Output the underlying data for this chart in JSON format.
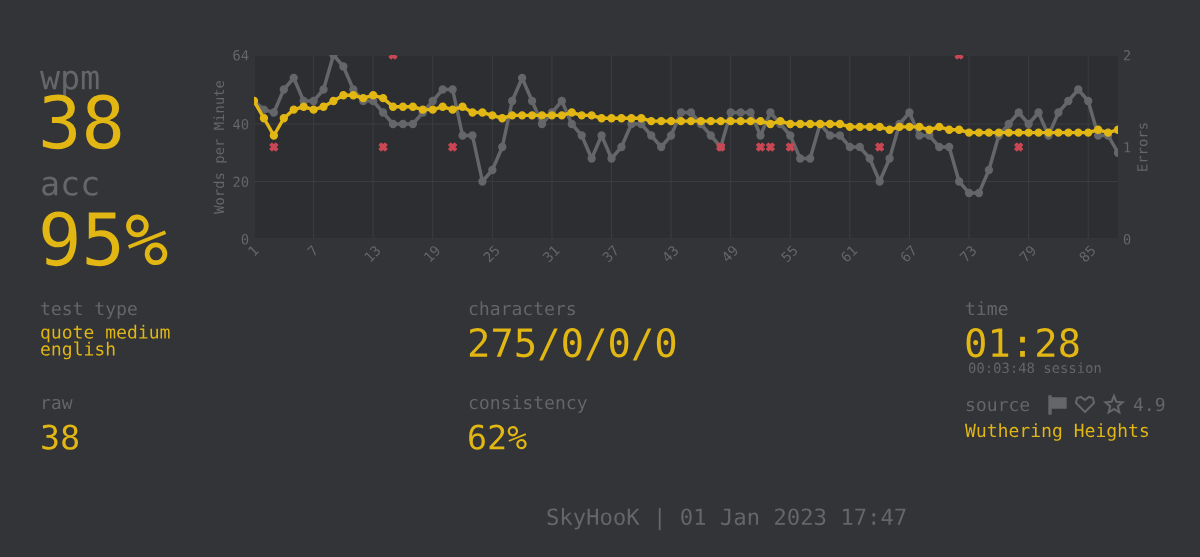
{
  "chart_data": {
    "type": "line",
    "x": [
      1,
      2,
      3,
      4,
      5,
      6,
      7,
      8,
      9,
      10,
      11,
      12,
      13,
      14,
      15,
      16,
      17,
      18,
      19,
      20,
      21,
      22,
      23,
      24,
      25,
      26,
      27,
      28,
      29,
      30,
      31,
      32,
      33,
      34,
      35,
      36,
      37,
      38,
      39,
      40,
      41,
      42,
      43,
      44,
      45,
      46,
      47,
      48,
      49,
      50,
      51,
      52,
      53,
      54,
      55,
      56,
      57,
      58,
      59,
      60,
      61,
      62,
      63,
      64,
      65,
      66,
      67,
      68,
      69,
      70,
      71,
      72,
      73,
      74,
      75,
      76,
      77,
      78,
      79,
      80,
      81,
      82,
      83,
      84,
      85,
      86,
      87,
      88
    ],
    "series": [
      {
        "color": "#646669",
        "marker": "circle",
        "values": [
          48,
          45,
          44,
          52,
          56,
          48,
          48,
          52,
          64,
          60,
          52,
          48,
          48,
          44,
          40,
          40,
          40,
          44,
          48,
          52,
          52,
          36,
          36,
          20,
          24,
          32,
          48,
          56,
          48,
          40,
          44,
          48,
          40,
          36,
          28,
          36,
          28,
          32,
          40,
          40,
          36,
          32,
          36,
          44,
          44,
          40,
          36,
          32,
          44,
          44,
          44,
          36,
          44,
          40,
          36,
          28,
          28,
          40,
          36,
          36,
          32,
          32,
          28,
          20,
          28,
          40,
          44,
          36,
          36,
          32,
          32,
          20,
          16,
          16,
          24,
          36,
          40,
          44,
          40,
          44,
          36,
          44,
          48,
          52,
          48,
          36,
          36,
          30
        ]
      },
      {
        "color": "#e2b714",
        "marker": "circle",
        "values": [
          48,
          42,
          36,
          42,
          45,
          46,
          45,
          46,
          48,
          50,
          50,
          49,
          50,
          49,
          46,
          46,
          46,
          45,
          45,
          46,
          45,
          46,
          44,
          44,
          43,
          42,
          43,
          43,
          43,
          43,
          43,
          43,
          44,
          43,
          43,
          42,
          42,
          42,
          42,
          42,
          41,
          41,
          41,
          41,
          41,
          41,
          41,
          41,
          41,
          41,
          41,
          41,
          40,
          41,
          40,
          40,
          40,
          40,
          40,
          40,
          39,
          39,
          39,
          39,
          38,
          39,
          39,
          39,
          38,
          39,
          38,
          38,
          37,
          37,
          37,
          37,
          37,
          37,
          37,
          37,
          37,
          37,
          37,
          37,
          37,
          38,
          37,
          38
        ]
      },
      {
        "type": "scatter",
        "axis": "y2",
        "color": "#ca4754",
        "marker": "cross",
        "x": [
          3,
          14,
          15,
          21,
          48,
          52,
          53,
          55,
          64,
          72,
          78
        ],
        "values": [
          1,
          1,
          2,
          1,
          1,
          1,
          1,
          1,
          1,
          2,
          1
        ]
      }
    ],
    "xlim": [
      1,
      88
    ],
    "xticks": [
      1,
      7,
      13,
      19,
      25,
      31,
      37,
      43,
      49,
      55,
      61,
      67,
      73,
      79,
      85
    ],
    "ylim": [
      0,
      64
    ],
    "yticks": [
      0,
      20,
      40,
      64
    ],
    "y2lim": [
      0,
      2
    ],
    "y2ticks": [
      0,
      1,
      2
    ],
    "ylabel": "Words per Minute",
    "y2label": "Errors",
    "grid": true,
    "annotations": [
      "wpm",
      "38",
      "acc",
      "95%",
      "test type",
      "quote medium\nenglish",
      "raw",
      "38",
      "characters",
      "275/0/0/0",
      "consistency",
      "62%",
      "time",
      "01:28",
      "00:03:48 session",
      "source",
      "4.9",
      "Wuthering Heights",
      "SkyHooK | 01 Jan 2023 17:47"
    ]
  }
}
